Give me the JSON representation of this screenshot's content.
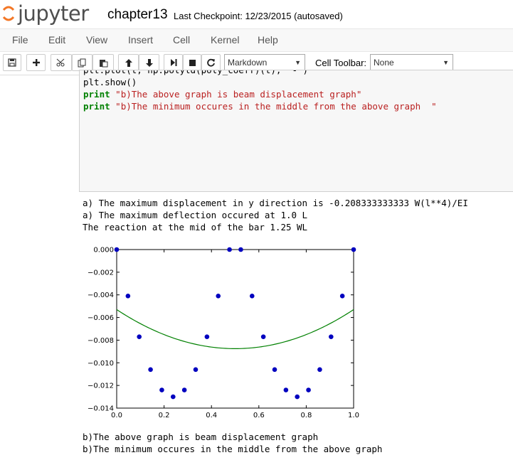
{
  "header": {
    "logo_text": "jupyter",
    "notebook_title": "chapter13",
    "checkpoint": "Last Checkpoint: 12/23/2015 (autosaved)"
  },
  "menu": [
    "File",
    "Edit",
    "View",
    "Insert",
    "Cell",
    "Kernel",
    "Help"
  ],
  "toolbar": {
    "cell_type": "Markdown",
    "cell_toolbar_label": "Cell Toolbar:",
    "cell_toolbar_value": "None",
    "icons": [
      "save-icon",
      "add-icon",
      "cut-icon",
      "copy-icon",
      "paste-icon",
      "move-up-icon",
      "move-down-icon",
      "run-icon",
      "stop-icon",
      "restart-icon"
    ]
  },
  "code": {
    "partial_line": "plt.plot(t, np.polyld(poly_coeff)(t), '-')",
    "line1": "plt.show()",
    "print_kw": "print",
    "str1": "\"b)The above graph is beam displacement graph\"",
    "str2": "\"b)The minimum occures in the middle from the above graph  \""
  },
  "output": {
    "line1": "a) The maximum displacement in y direction is -0.208333333333 W(l**4)/EI",
    "line2": "a) The maximum deflection occured at 1.0 L",
    "line3": "The reaction at the mid of the bar 1.25 WL",
    "line4": "b)The above graph is beam displacement graph",
    "line5": "b)The minimum occures in the middle from the above graph"
  },
  "chart_data": {
    "type": "scatter",
    "xlim": [
      0.0,
      1.0
    ],
    "ylim": [
      -0.014,
      0.0
    ],
    "xticks": [
      0.0,
      0.2,
      0.4,
      0.6,
      0.8,
      1.0
    ],
    "xtick_labels": [
      "0.0",
      "0.2",
      "0.4",
      "0.6",
      "0.8",
      "1.0"
    ],
    "yticks": [
      0.0,
      -0.002,
      -0.004,
      -0.006,
      -0.008,
      -0.01,
      -0.012,
      -0.014
    ],
    "ytick_labels": [
      "0.000",
      "−0.002",
      "−0.004",
      "−0.006",
      "−0.008",
      "−0.010",
      "−0.012",
      "−0.014"
    ],
    "points": {
      "color": "#0000bf",
      "x": [
        0.0,
        0.0476,
        0.0952,
        0.1429,
        0.1905,
        0.2381,
        0.2857,
        0.3333,
        0.381,
        0.4286,
        0.4762,
        0.5238,
        0.5714,
        0.619,
        0.6667,
        0.7143,
        0.7619,
        0.8095,
        0.8571,
        0.9048,
        0.9524,
        1.0
      ],
      "y": [
        0.0,
        -0.0041,
        -0.0077,
        -0.0106,
        -0.0124,
        -0.013,
        -0.0124,
        -0.0106,
        -0.0077,
        -0.0041,
        0.0,
        0.0,
        -0.0041,
        -0.0077,
        -0.0106,
        -0.0124,
        -0.013,
        -0.0124,
        -0.0106,
        -0.0077,
        -0.0041,
        0.0
      ]
    },
    "fit_curve": {
      "color": "#008000",
      "coefficients": [
        0.0138,
        -0.0138,
        -0.0053
      ]
    }
  }
}
